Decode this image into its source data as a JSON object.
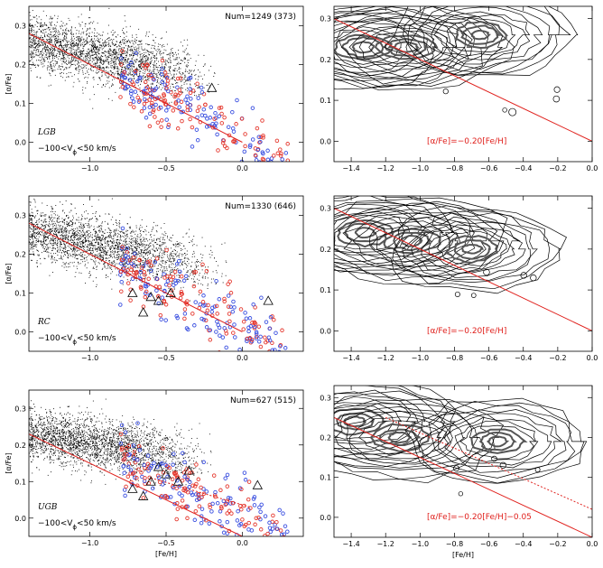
{
  "chart_data": [
    {
      "id": "lgb-scatter",
      "type": "scatter",
      "ylabel": "[α/Fe]",
      "xlabel": "",
      "xlim": [
        -1.4,
        0.4
      ],
      "ylim": [
        -0.05,
        0.35
      ],
      "xticks": [
        -1.0,
        -0.5,
        0.0
      ],
      "xtick_labels": [
        "−1.0",
        "−0.5",
        "0.0"
      ],
      "yticks": [
        0.0,
        0.1,
        0.2,
        0.3
      ],
      "ytick_labels": [
        "0.0",
        "0.1",
        "0.2",
        "0.3"
      ],
      "num_label": "Num=1249 (373)",
      "group_label": "LGB",
      "vphi_label": "−100<V",
      "vphi_sub": "ϕ",
      "vphi_rest": "<50 km/s",
      "fit_line": {
        "x": [
          -1.4,
          0.0
        ],
        "y": [
          0.28,
          0.0
        ]
      },
      "triangles": [
        {
          "x": -0.2,
          "y": 0.14
        }
      ],
      "cloud": {
        "center": [
          -1.0,
          0.23
        ],
        "extent": [
          -1.4,
          -0.15
        ],
        "slope": -0.08
      }
    },
    {
      "id": "lgb-contour",
      "type": "contour",
      "xlim": [
        -1.5,
        0.0
      ],
      "ylim": [
        -0.05,
        0.33
      ],
      "xticks": [
        -1.4,
        -1.2,
        -1.0,
        -0.8,
        -0.6,
        -0.4,
        -0.2,
        0.0
      ],
      "xtick_labels": [
        "−1.4",
        "−1.2",
        "−1.0",
        "−0.8",
        "−0.6",
        "−0.4",
        "−0.2",
        "0.0"
      ],
      "yticks": [
        0.0,
        0.1,
        0.2,
        0.3
      ],
      "ytick_labels": [
        "0.0",
        "0.1",
        "0.2",
        "0.3"
      ],
      "relation": "[α/Fe]=−0.20[Fe/H]",
      "fit_line": {
        "x": [
          -1.5,
          0.0
        ],
        "y": [
          0.3,
          0.0
        ]
      },
      "peaks": [
        {
          "x": -1.33,
          "y": 0.23
        },
        {
          "x": -1.08,
          "y": 0.23
        },
        {
          "x": -0.65,
          "y": 0.26
        }
      ]
    },
    {
      "id": "rc-scatter",
      "type": "scatter",
      "ylabel": "[α/Fe]",
      "xlabel": "",
      "xlim": [
        -1.4,
        0.4
      ],
      "ylim": [
        -0.05,
        0.35
      ],
      "xticks": [
        -1.0,
        -0.5,
        0.0
      ],
      "xtick_labels": [
        "−1.0",
        "−0.5",
        "0.0"
      ],
      "yticks": [
        0.0,
        0.1,
        0.2,
        0.3
      ],
      "ytick_labels": [
        "0.0",
        "0.1",
        "0.2",
        "0.3"
      ],
      "num_label": "Num=1330 (646)",
      "group_label": "RC",
      "vphi_label": "−100<V",
      "vphi_sub": "ϕ",
      "vphi_rest": "<50 km/s",
      "fit_line": {
        "x": [
          -1.4,
          0.0
        ],
        "y": [
          0.28,
          0.0
        ]
      },
      "triangles": [
        {
          "x": -0.72,
          "y": 0.1
        },
        {
          "x": -0.6,
          "y": 0.09
        },
        {
          "x": -0.47,
          "y": 0.1
        },
        {
          "x": -0.55,
          "y": 0.08
        },
        {
          "x": -0.65,
          "y": 0.05
        },
        {
          "x": 0.17,
          "y": 0.08
        }
      ],
      "cloud": {
        "center": [
          -1.0,
          0.23
        ],
        "extent": [
          -1.4,
          -0.1
        ],
        "slope": -0.08
      }
    },
    {
      "id": "rc-contour",
      "type": "contour",
      "xlim": [
        -1.5,
        0.0
      ],
      "ylim": [
        -0.05,
        0.33
      ],
      "xticks": [
        -1.4,
        -1.2,
        -1.0,
        -0.8,
        -0.6,
        -0.4,
        -0.2,
        0.0
      ],
      "xtick_labels": [
        "−1.4",
        "−1.2",
        "−1.0",
        "−0.8",
        "−0.6",
        "−0.4",
        "−0.2",
        "0.0"
      ],
      "yticks": [
        0.0,
        0.1,
        0.2,
        0.3
      ],
      "ytick_labels": [
        "0.0",
        "0.1",
        "0.2",
        "0.3"
      ],
      "relation": "[α/Fe]=−0.20[Fe/H]",
      "fit_line": {
        "x": [
          -1.5,
          0.0
        ],
        "y": [
          0.3,
          0.0
        ]
      },
      "peaks": [
        {
          "x": -1.32,
          "y": 0.24
        },
        {
          "x": -1.05,
          "y": 0.22
        },
        {
          "x": -0.7,
          "y": 0.2
        }
      ]
    },
    {
      "id": "ugb-scatter",
      "type": "scatter",
      "ylabel": "[α/Fe]",
      "xlabel": "[Fe/H]",
      "xlim": [
        -1.4,
        0.4
      ],
      "ylim": [
        -0.05,
        0.35
      ],
      "xticks": [
        -1.0,
        -0.5,
        0.0
      ],
      "xtick_labels": [
        "−1.0",
        "−0.5",
        "0.0"
      ],
      "yticks": [
        0.0,
        0.1,
        0.2,
        0.3
      ],
      "ytick_labels": [
        "0.0",
        "0.1",
        "0.2",
        "0.3"
      ],
      "num_label": "Num=627 (515)",
      "group_label": "UGB",
      "vphi_label": "−100<V",
      "vphi_sub": "ϕ",
      "vphi_rest": "<50 km/s",
      "fit_line": {
        "x": [
          -1.4,
          0.0
        ],
        "y": [
          0.23,
          -0.05
        ]
      },
      "dashed_line": {
        "x": [
          -0.6,
          0.05
        ],
        "y": [
          0.11,
          0.03
        ]
      },
      "triangles": [
        {
          "x": -0.72,
          "y": 0.08
        },
        {
          "x": -0.6,
          "y": 0.1
        },
        {
          "x": -0.5,
          "y": 0.12
        },
        {
          "x": -0.42,
          "y": 0.1
        },
        {
          "x": -0.55,
          "y": 0.14
        },
        {
          "x": -0.65,
          "y": 0.06
        },
        {
          "x": -0.35,
          "y": 0.13
        },
        {
          "x": 0.1,
          "y": 0.09
        }
      ],
      "cloud": {
        "center": [
          -1.05,
          0.21
        ],
        "extent": [
          -1.4,
          -0.2
        ],
        "slope": -0.06
      }
    },
    {
      "id": "ugb-contour",
      "type": "contour",
      "xlabel": "[Fe/H]",
      "xlim": [
        -1.5,
        0.0
      ],
      "ylim": [
        -0.05,
        0.33
      ],
      "xticks": [
        -1.4,
        -1.2,
        -1.0,
        -0.8,
        -0.6,
        -0.4,
        -0.2,
        0.0
      ],
      "xtick_labels": [
        "−1.4",
        "−1.2",
        "−1.0",
        "−0.8",
        "−0.6",
        "−0.4",
        "−0.2",
        "0.0"
      ],
      "yticks": [
        0.0,
        0.1,
        0.2,
        0.3
      ],
      "ytick_labels": [
        "0.0",
        "0.1",
        "0.2",
        "0.3"
      ],
      "relation": "[α/Fe]=−0.20[Fe/H]−0.05",
      "fit_line": {
        "x": [
          -1.5,
          0.0
        ],
        "y": [
          0.25,
          -0.05
        ]
      },
      "dashed_line": {
        "x": [
          -1.2,
          0.0
        ],
        "y": [
          0.25,
          0.02
        ]
      },
      "peaks": [
        {
          "x": -1.38,
          "y": 0.24
        },
        {
          "x": -1.12,
          "y": 0.2
        },
        {
          "x": -0.55,
          "y": 0.19
        }
      ]
    }
  ]
}
